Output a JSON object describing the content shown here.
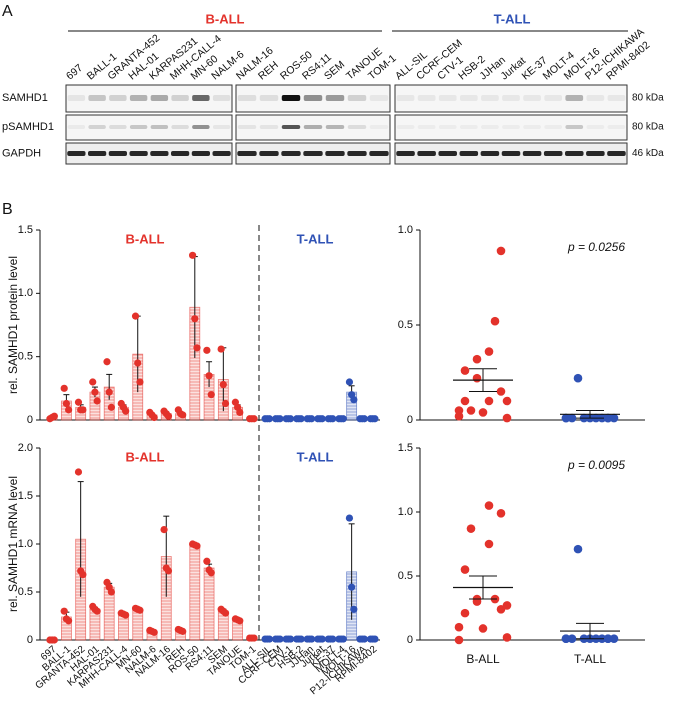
{
  "panel_a": {
    "label": "A",
    "rows": [
      {
        "name": "SAMHD1",
        "size": "80 kDa"
      },
      {
        "name": "pSAMHD1",
        "size": "80 kDa"
      },
      {
        "name": "GAPDH",
        "size": "46 kDa"
      }
    ]
  },
  "panel_b": {
    "label": "B"
  },
  "chart_data": [
    {
      "type": "bar",
      "ylabel": "rel. SAMHD1 protein level",
      "groups": [
        {
          "name": "B-ALL",
          "color": "#e3322b",
          "count": 15
        },
        {
          "name": "T-ALL",
          "color": "#2f52b5",
          "count": 11
        }
      ],
      "categories": [
        "697",
        "BALL-1",
        "GRANTA-452",
        "HAL-01",
        "KARPAS231",
        "MHH-CALL-4",
        "MN-60",
        "NALM-6",
        "NALM-16",
        "REH",
        "ROS-50",
        "RS4;11",
        "SEM",
        "TANOUE",
        "TOM-1",
        "ALL-SIL",
        "CCRF-CEM",
        "CTV-1",
        "HSB-2",
        "JJHan",
        "Jurkat",
        "KE-37",
        "MOLT-4",
        "MOLT-16",
        "P12-ICHIKAWA",
        "RPMI-8402"
      ],
      "values": [
        0.02,
        0.15,
        0.1,
        0.22,
        0.26,
        0.1,
        0.52,
        0.04,
        0.05,
        0.05,
        0.89,
        0.36,
        0.32,
        0.1,
        0.01,
        0.01,
        0.01,
        0.01,
        0.01,
        0.01,
        0.01,
        0.01,
        0.01,
        0.22,
        0.01,
        0.01
      ],
      "errors": [
        0.01,
        0.05,
        0.02,
        0.04,
        0.1,
        0.02,
        0.3,
        0.01,
        0.01,
        0.01,
        0.4,
        0.1,
        0.25,
        0.02,
        0,
        0,
        0,
        0,
        0,
        0,
        0,
        0,
        0,
        0.05,
        0,
        0
      ],
      "points": [
        [
          0.01,
          0.02,
          0.03
        ],
        [
          0.25,
          0.13,
          0.08
        ],
        [
          0.14,
          0.08,
          0.08
        ],
        [
          0.3,
          0.22,
          0.15
        ],
        [
          0.46,
          0.22,
          0.1
        ],
        [
          0.13,
          0.1,
          0.07
        ],
        [
          0.82,
          0.45,
          0.3
        ],
        [
          0.06,
          0.04,
          0.02
        ],
        [
          0.07,
          0.05,
          0.03
        ],
        [
          0.08,
          0.05,
          0.04
        ],
        [
          1.3,
          0.8,
          0.57
        ],
        [
          0.55,
          0.35,
          0.2
        ],
        [
          0.56,
          0.28,
          0.13
        ],
        [
          0.14,
          0.1,
          0.06
        ],
        [
          0.01,
          0.01,
          0.01
        ],
        [
          0.01,
          0.01,
          0.01
        ],
        [
          0.01,
          0.01,
          0.01
        ],
        [
          0.01,
          0.01,
          0.01
        ],
        [
          0.01,
          0.01,
          0.01
        ],
        [
          0.01,
          0.01,
          0.01
        ],
        [
          0.01,
          0.01,
          0.01
        ],
        [
          0.01,
          0.01,
          0.01
        ],
        [
          0.01,
          0.01,
          0.01
        ],
        [
          0.3,
          0.2,
          0.16
        ],
        [
          0.01,
          0.01,
          0.01
        ],
        [
          0.01,
          0.01,
          0.01
        ]
      ],
      "ylim": [
        0,
        1.5
      ],
      "yticks": [
        0,
        0.5,
        {
          "value": 1,
          "label": "1.0"
        },
        1.5
      ]
    },
    {
      "type": "bar",
      "ylabel": "rel. SAMHD1 mRNA level",
      "groups": [
        {
          "name": "B-ALL",
          "color": "#e3322b",
          "count": 15
        },
        {
          "name": "T-ALL",
          "color": "#2f52b5",
          "count": 11
        }
      ],
      "categories": [
        "697",
        "BALL-1",
        "GRANTA-452",
        "HAL-01",
        "KARPAS231",
        "MHH-CALL-4",
        "MN-60",
        "NALM-6",
        "NALM-16",
        "REH",
        "ROS-50",
        "RS4;11",
        "SEM",
        "TANOUE",
        "TOM-1",
        "ALL-SIL",
        "CCRF-CEM",
        "CTV-1",
        "HSB-2",
        "JJHan",
        "Jurkat",
        "KE-37",
        "MOLT-4",
        "MOLT-16",
        "P12-ICHIKAWA",
        "RPMI-8402"
      ],
      "values": [
        0,
        0.24,
        1.05,
        0.32,
        0.55,
        0.27,
        0.32,
        0.09,
        0.87,
        0.1,
        0.99,
        0.75,
        0.3,
        0.21,
        0.02,
        0.01,
        0.01,
        0.01,
        0.01,
        0.01,
        0.01,
        0.01,
        0.01,
        0.71,
        0.01,
        0.01
      ],
      "errors": [
        0,
        0.05,
        0.6,
        0.02,
        0.04,
        0.01,
        0.01,
        0.01,
        0.42,
        0.01,
        0.01,
        0.04,
        0.02,
        0.01,
        0.01,
        0,
        0,
        0,
        0,
        0,
        0,
        0,
        0,
        0.5,
        0,
        0
      ],
      "points": [
        [
          0,
          0,
          0
        ],
        [
          0.3,
          0.22,
          0.2
        ],
        [
          1.75,
          0.72,
          0.68
        ],
        [
          0.35,
          0.32,
          0.3
        ],
        [
          0.6,
          0.55,
          0.5
        ],
        [
          0.28,
          0.27,
          0.26
        ],
        [
          0.33,
          0.32,
          0.31
        ],
        [
          0.1,
          0.09,
          0.08
        ],
        [
          1.15,
          0.75,
          0.72
        ],
        [
          0.11,
          0.1,
          0.09
        ],
        [
          1,
          0.99,
          0.98
        ],
        [
          0.82,
          0.73,
          0.7
        ],
        [
          0.32,
          0.3,
          0.28
        ],
        [
          0.22,
          0.21,
          0.2
        ],
        [
          0.02,
          0.02,
          0.02
        ],
        [
          0.01,
          0.01,
          0.01
        ],
        [
          0.01,
          0.01,
          0.01
        ],
        [
          0.01,
          0.01,
          0.01
        ],
        [
          0.01,
          0.01,
          0.01
        ],
        [
          0.01,
          0.01,
          0.01
        ],
        [
          0.01,
          0.01,
          0.01
        ],
        [
          0.01,
          0.01,
          0.01
        ],
        [
          0.01,
          0.01,
          0.01
        ],
        [
          1.27,
          0.55,
          0.32
        ],
        [
          0.01,
          0.01,
          0.01
        ],
        [
          0.01,
          0.01,
          0.01
        ]
      ],
      "ylim": [
        0,
        2
      ],
      "yticks": [
        0,
        0.5,
        {
          "value": 1,
          "label": "1.0"
        },
        1.5,
        {
          "value": 2,
          "label": "2.0"
        }
      ]
    },
    {
      "type": "scatter",
      "annotation": "p = 0.0256",
      "series": [
        {
          "color": "#e3322b",
          "values": [
            0.02,
            0.15,
            0.1,
            0.22,
            0.26,
            0.1,
            0.52,
            0.04,
            0.05,
            0.05,
            0.89,
            0.36,
            0.32,
            0.1,
            0.01
          ],
          "mean": 0.21,
          "sem": 0.06
        },
        {
          "color": "#2f52b5",
          "values": [
            0.01,
            0.01,
            0.01,
            0.01,
            0.01,
            0.01,
            0.01,
            0.01,
            0.22,
            0.01,
            0.01
          ],
          "mean": 0.03,
          "sem": 0.02
        }
      ],
      "ylim": [
        0,
        1
      ],
      "yticks": [
        0,
        0.5,
        {
          "value": 1,
          "label": "1.0"
        }
      ]
    },
    {
      "type": "scatter",
      "annotation": "p = 0.0095",
      "categories": [
        "B-ALL",
        "T-ALL"
      ],
      "series": [
        {
          "color": "#e3322b",
          "values": [
            0,
            0.24,
            1.05,
            0.32,
            0.55,
            0.27,
            0.32,
            0.09,
            0.87,
            0.1,
            0.99,
            0.75,
            0.3,
            0.21,
            0.02
          ],
          "mean": 0.41,
          "sem": 0.09
        },
        {
          "color": "#2f52b5",
          "values": [
            0.01,
            0.01,
            0.01,
            0.01,
            0.01,
            0.01,
            0.01,
            0.01,
            0.71,
            0.01,
            0.01
          ],
          "mean": 0.07,
          "sem": 0.06
        }
      ],
      "ylim": [
        0,
        1.5
      ],
      "yticks": [
        0,
        0.5,
        {
          "value": 1,
          "label": "1.0"
        },
        1.5
      ]
    }
  ]
}
